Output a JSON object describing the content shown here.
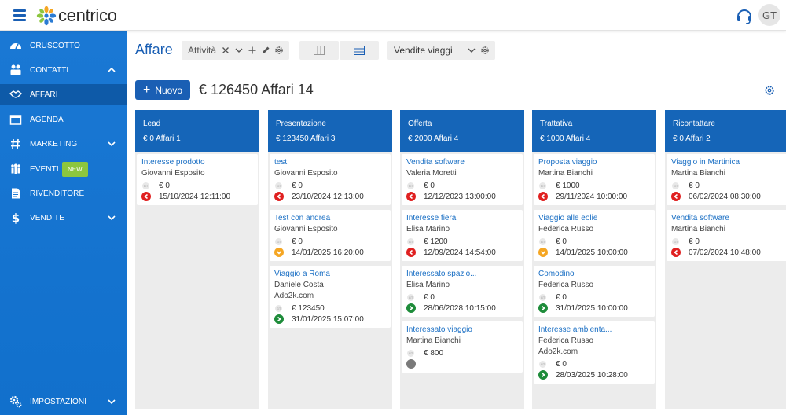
{
  "header": {
    "logo_text": "centrico",
    "avatar_initials": "GT",
    "colors": {
      "accent": "#1a5fb4",
      "sidebar": "#1a78d4",
      "column_head": "#1565b8"
    }
  },
  "sidebar": {
    "items": [
      {
        "label": "CRUSCOTTO",
        "icon": "dashboard-icon"
      },
      {
        "label": "CONTATTI",
        "icon": "contacts-icon"
      },
      {
        "label": "AFFARI",
        "icon": "handshake-icon"
      },
      {
        "label": "AGENDA",
        "icon": "calendar-icon"
      },
      {
        "label": "MARKETING",
        "icon": "hashtag-icon"
      },
      {
        "label": "EVENTI",
        "icon": "people-icon",
        "badge": "NEW"
      },
      {
        "label": "RIVENDITORE",
        "icon": "document-icon"
      },
      {
        "label": "VENDITE",
        "icon": "dollar-icon"
      },
      {
        "label": "IMPOSTAZIONI",
        "icon": "cogs-icon"
      }
    ]
  },
  "main": {
    "title": "Affare",
    "view_select": "Attività",
    "pipeline_select": "Vendite viaggi",
    "new_button": "Nuovo",
    "summary": "€ 126450 Affari 14"
  },
  "columns": [
    {
      "name": "Lead",
      "stats": "€ 0 Affari 1",
      "cards": [
        {
          "title": "Interesse prodotto",
          "lines": [
            "Giovanni Esposito"
          ],
          "amount": "€ 0",
          "status": "red",
          "date": "15/10/2024 12:11:00"
        }
      ]
    },
    {
      "name": "Presentazione",
      "stats": "€ 123450 Affari 3",
      "cards": [
        {
          "title": "test",
          "lines": [
            "Giovanni Esposito"
          ],
          "amount": "€ 0",
          "status": "red",
          "date": "23/10/2024 12:13:00"
        },
        {
          "title": "Test con andrea",
          "lines": [
            "Giovanni Esposito"
          ],
          "amount": "€ 0",
          "status": "orange",
          "date": "14/01/2025 16:20:00"
        },
        {
          "title": "Viaggio a Roma",
          "lines": [
            "Daniele Costa",
            "Ado2k.com"
          ],
          "amount": "€ 123450",
          "status": "green",
          "date": "31/01/2025 15:07:00"
        }
      ]
    },
    {
      "name": "Offerta",
      "stats": "€ 2000 Affari 4",
      "cards": [
        {
          "title": "Vendita software",
          "lines": [
            "Valeria Moretti"
          ],
          "amount": "€ 0",
          "status": "red",
          "date": "12/12/2023 13:00:00"
        },
        {
          "title": "Interesse fiera",
          "lines": [
            "Elisa Marino"
          ],
          "amount": "€ 1200",
          "status": "red",
          "date": "12/09/2024 14:54:00"
        },
        {
          "title": "Interessato spazio...",
          "lines": [
            "Elisa Marino"
          ],
          "amount": "€ 0",
          "status": "green",
          "date": "28/06/2028 10:15:00"
        },
        {
          "title": "Interessato viaggio",
          "lines": [
            "Martina Bianchi"
          ],
          "amount": "€ 800",
          "status": "grey",
          "date": ""
        }
      ]
    },
    {
      "name": "Trattativa",
      "stats": "€ 1000 Affari 4",
      "cards": [
        {
          "title": "Proposta viaggio",
          "lines": [
            "Martina Bianchi"
          ],
          "amount": "€ 1000",
          "status": "red",
          "date": "29/11/2024 10:00:00"
        },
        {
          "title": "Viaggio alle eolie",
          "lines": [
            "Federica Russo"
          ],
          "amount": "€ 0",
          "status": "orange",
          "date": "14/01/2025 10:00:00"
        },
        {
          "title": "Comodino",
          "lines": [
            "Federica Russo"
          ],
          "amount": "€ 0",
          "status": "green",
          "date": "31/01/2025 10:00:00"
        },
        {
          "title": "Interesse ambienta...",
          "lines": [
            "Federica Russo",
            "Ado2k.com"
          ],
          "amount": "€ 0",
          "status": "green",
          "date": "28/03/2025 10:28:00"
        }
      ]
    },
    {
      "name": "Ricontattare",
      "stats": "€ 0 Affari 2",
      "cards": [
        {
          "title": "Viaggio in Martinica",
          "lines": [
            "Martina Bianchi"
          ],
          "amount": "€ 0",
          "status": "red",
          "date": "06/02/2024 08:30:00"
        },
        {
          "title": "Vendita software",
          "lines": [
            "Martina Bianchi"
          ],
          "amount": "€ 0",
          "status": "red",
          "date": "07/02/2024 10:48:00"
        }
      ]
    }
  ]
}
